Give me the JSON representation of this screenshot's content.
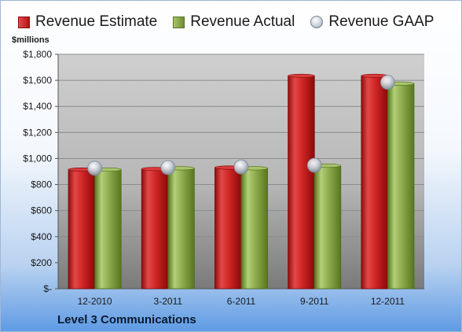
{
  "chart_data": {
    "type": "bar",
    "categories": [
      "12-2010",
      "3-2011",
      "6-2011",
      "9-2011",
      "12-2011"
    ],
    "series": [
      {
        "name": "Revenue Estimate",
        "type": "bar",
        "color": "#c62020",
        "values": [
          915,
          920,
          930,
          1635,
          1635
        ]
      },
      {
        "name": "Revenue Actual",
        "type": "bar",
        "color": "#8aa84a",
        "values": [
          915,
          925,
          925,
          945,
          1575
        ]
      },
      {
        "name": "Revenue GAAP",
        "type": "marker",
        "color": "#b8c0ca",
        "values": [
          925,
          930,
          935,
          948,
          1585
        ]
      }
    ],
    "ylabel": "$millions",
    "ylim": [
      0,
      1800
    ],
    "yticks": [
      "$-",
      "$200",
      "$400",
      "$600",
      "$800",
      "$1,000",
      "$1,200",
      "$1,400",
      "$1,600",
      "$1,800"
    ],
    "grid": true,
    "legend_position": "top",
    "footer": "Level 3 Communications"
  }
}
